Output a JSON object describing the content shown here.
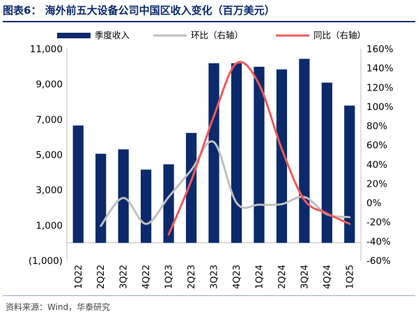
{
  "header": {
    "title": "图表6：  海外前五大设备公司中国区收入变化（百万美元）"
  },
  "footer": {
    "source": "资料来源：Wind，华泰研究"
  },
  "colors": {
    "bar": "#0b2a6b",
    "qoq": "#bfbfbf",
    "yoy": "#f05a5a",
    "title": "#0b2a6b"
  },
  "chart_data": {
    "type": "bar",
    "categories": [
      "1Q22",
      "2Q22",
      "3Q22",
      "4Q22",
      "1Q23",
      "2Q23",
      "3Q23",
      "4Q23",
      "1Q24",
      "2Q24",
      "3Q24",
      "4Q24",
      "1Q25"
    ],
    "y_left": {
      "range": [
        -1000,
        11000
      ],
      "ticks": [
        "11,000",
        "9,000",
        "7,000",
        "5,000",
        "3,000",
        "1,000",
        "(1,000)"
      ]
    },
    "y_right": {
      "range": [
        -60,
        160
      ],
      "unit": "%",
      "ticks": [
        "160%",
        "140%",
        "120%",
        "100%",
        "80%",
        "60%",
        "40%",
        "20%",
        "0%",
        "-20%",
        "-40%",
        "-60%"
      ]
    },
    "legend": {
      "position": "top",
      "items": [
        "季度收入",
        "环比（右轴）",
        "同比（右轴）"
      ]
    },
    "series": [
      {
        "name": "季度收入",
        "type": "bar",
        "axis": "left",
        "values": [
          6650,
          5050,
          5300,
          4150,
          4450,
          6230,
          10180,
          10180,
          9980,
          9830,
          10430,
          9080,
          7780
        ]
      },
      {
        "name": "环比（右轴）",
        "type": "line",
        "axis": "right",
        "values": [
          null,
          -24,
          5,
          -22,
          6,
          34,
          63,
          0,
          -2,
          -1.5,
          6,
          -12,
          -15
        ]
      },
      {
        "name": "同比（右轴）",
        "type": "line",
        "axis": "right",
        "values": [
          null,
          null,
          null,
          null,
          -33,
          23,
          90,
          145,
          123,
          56,
          3,
          -11,
          -22
        ]
      }
    ],
    "grid": false
  }
}
